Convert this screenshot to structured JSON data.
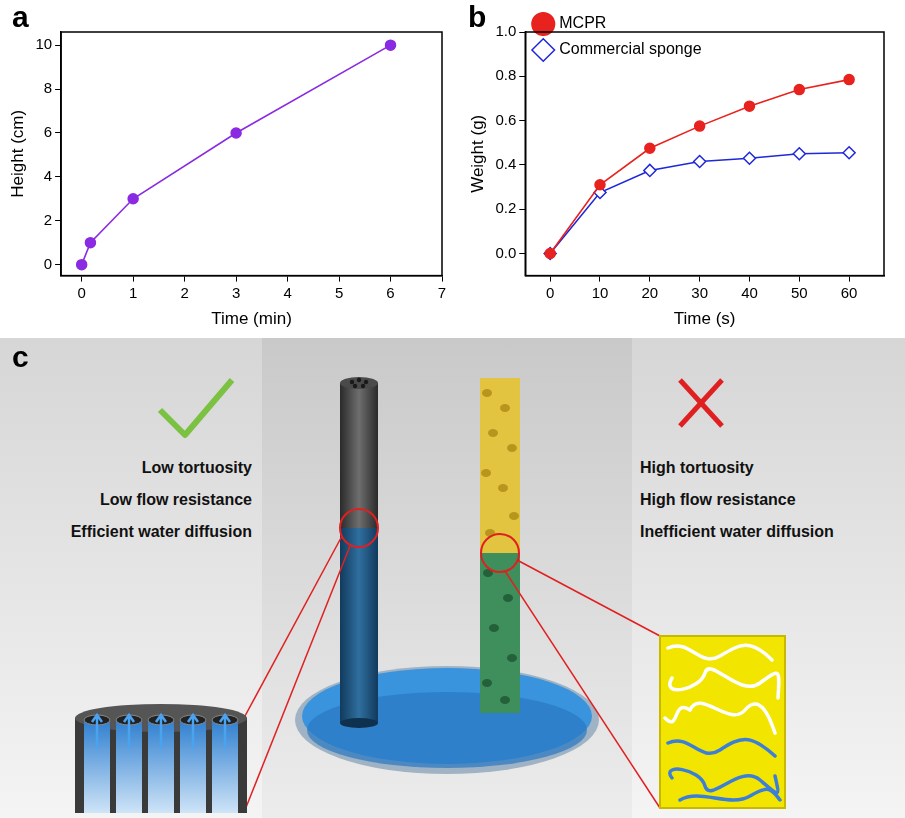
{
  "chart_data": [
    {
      "panel": "a",
      "type": "line",
      "xlabel": "Time (min)",
      "ylabel": "Height (cm)",
      "x": [
        0,
        0.17,
        1,
        3,
        6
      ],
      "values": [
        0,
        1,
        3,
        6,
        10
      ],
      "color": "#8a2be2",
      "marker": "circle",
      "line_style": "solid",
      "xlim": [
        -0.4,
        7
      ],
      "xticks": [
        0,
        1,
        2,
        3,
        4,
        5,
        6,
        7
      ],
      "ylim": [
        -0.5,
        10.6
      ],
      "yticks": [
        0,
        2,
        4,
        6,
        8,
        10
      ],
      "grid": false
    },
    {
      "panel": "b",
      "type": "line",
      "xlabel": "Time (s)",
      "ylabel": "Weight (g)",
      "x": [
        0,
        10,
        20,
        30,
        40,
        50,
        60
      ],
      "series": [
        {
          "name": "MCPR",
          "color": "#e8221e",
          "marker": "circle",
          "line_style": "solid",
          "values": [
            0,
            0.31,
            0.475,
            0.575,
            0.665,
            0.74,
            0.785
          ]
        },
        {
          "name": "Commercial sponge",
          "color": "#1f28d9",
          "marker": "diamond",
          "line_style": "solid",
          "values": [
            0,
            0.275,
            0.375,
            0.415,
            0.43,
            0.45,
            0.455
          ]
        }
      ],
      "xlim": [
        -5,
        67
      ],
      "xticks": [
        0,
        10,
        20,
        30,
        40,
        50,
        60
      ],
      "ylim": [
        -0.1,
        1.0
      ],
      "yticks": [
        {
          "value": 0,
          "label": "0.0"
        },
        0.2,
        0.4,
        0.6,
        0.8,
        {
          "value": 1,
          "label": "1.0"
        }
      ],
      "grid": false,
      "legend": "top-left"
    }
  ],
  "diagram": {
    "panel": "c",
    "left": {
      "labels": [
        "Low tortuosity",
        "Low flow resistance",
        "Efficient water diffusion"
      ]
    },
    "right": {
      "labels": [
        "High tortuosity",
        "High flow resistance",
        "Inefficient water diffusion"
      ]
    }
  }
}
